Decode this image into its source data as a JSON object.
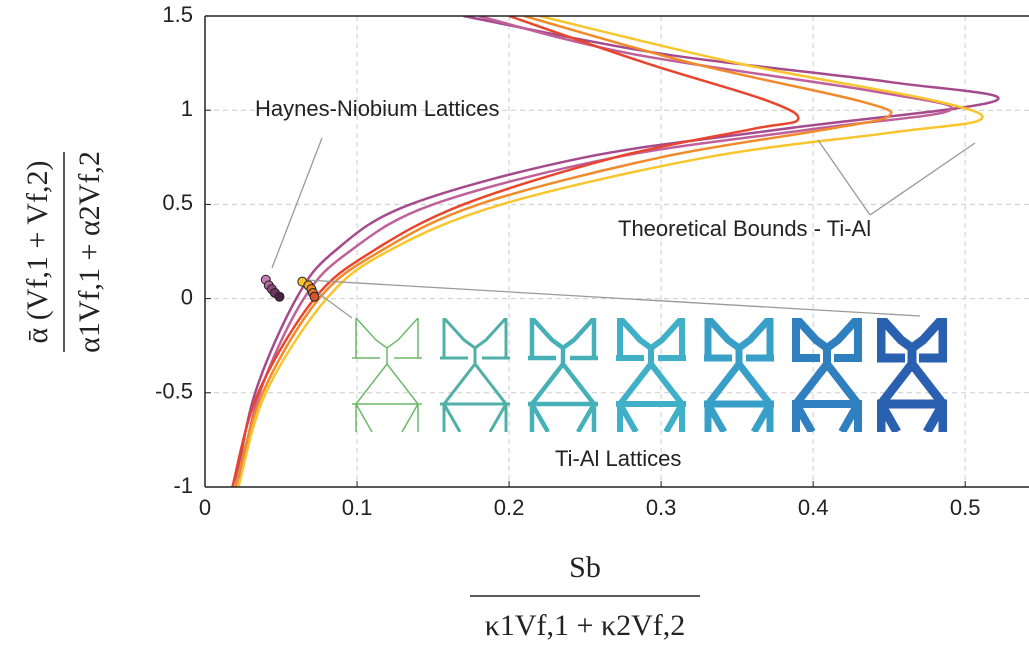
{
  "chart_data": {
    "type": "line",
    "y_label": {
      "numerator": "ᾱ (Vf,1 + Vf,2)",
      "denominator": "α1Vf,1 + α2Vf,2"
    },
    "x_label": {
      "numerator": "Sb",
      "denominator": "κ1Vf,1 + κ2Vf,2"
    },
    "xlim": [
      0,
      0.54
    ],
    "xticks": [
      0,
      0.1,
      0.2,
      0.3,
      0.4,
      0.5
    ],
    "ylim": [
      -1,
      1.5
    ],
    "yticks": [
      -1,
      -0.5,
      0,
      0.5,
      1,
      1.5
    ],
    "grid": true,
    "annotations": [
      "Theoretical Bounds - Ti-Al"
    ],
    "series": [
      {
        "type": "line",
        "color": "#a54a8c",
        "y": [
          -1,
          -0.5,
          0,
          0.25,
          0.5,
          0.75,
          0.9,
          1.05,
          1.15,
          1.3,
          1.5
        ],
        "x": [
          0.02,
          0.033,
          0.06,
          0.085,
          0.135,
          0.25,
          0.38,
          0.52,
          0.45,
          0.3,
          0.17
        ]
      },
      {
        "type": "line",
        "color": "#c0609a",
        "y": [
          -1,
          -0.5,
          0,
          0.25,
          0.5,
          0.75,
          0.9,
          1.0,
          1.1,
          1.3,
          1.5
        ],
        "x": [
          0.022,
          0.036,
          0.065,
          0.095,
          0.15,
          0.27,
          0.4,
          0.49,
          0.44,
          0.28,
          0.18
        ]
      },
      {
        "type": "line",
        "color": "#e8452c",
        "y": [
          -1,
          -0.5,
          0,
          0.25,
          0.5,
          0.75,
          0.9,
          0.95,
          1.05,
          1.25,
          1.5
        ],
        "x": [
          0.018,
          0.035,
          0.072,
          0.11,
          0.17,
          0.27,
          0.36,
          0.39,
          0.37,
          0.29,
          0.2
        ]
      },
      {
        "type": "line",
        "color": "#f08a2a",
        "y": [
          -1,
          -0.5,
          0,
          0.25,
          0.5,
          0.75,
          0.9,
          0.97,
          1.05,
          1.25,
          1.5
        ],
        "x": [
          0.02,
          0.038,
          0.075,
          0.115,
          0.18,
          0.3,
          0.41,
          0.45,
          0.43,
          0.32,
          0.21
        ]
      },
      {
        "type": "line",
        "color": "#f8c62c",
        "y": [
          -1,
          -0.5,
          0,
          0.25,
          0.5,
          0.75,
          0.88,
          0.95,
          1.05,
          1.25,
          1.5
        ],
        "x": [
          0.022,
          0.04,
          0.08,
          0.12,
          0.195,
          0.33,
          0.45,
          0.51,
          0.48,
          0.35,
          0.22
        ]
      },
      {
        "type": "scatter",
        "name": "Haynes-Niobium Lattices",
        "colors": [
          "#c77fb4",
          "#b0669e",
          "#8e4a80",
          "#6e3562",
          "#4a2244"
        ],
        "x": [
          0.04,
          0.042,
          0.044,
          0.046,
          0.049
        ],
        "y": [
          0.1,
          0.07,
          0.05,
          0.03,
          0.01
        ]
      },
      {
        "type": "scatter",
        "name": "Ti-Al Lattices",
        "colors": [
          "#f8c62c",
          "#f5a623",
          "#f08a2a",
          "#e8702a",
          "#d8552a"
        ],
        "x": [
          0.064,
          0.068,
          0.07,
          0.071,
          0.072
        ],
        "y": [
          0.09,
          0.07,
          0.05,
          0.03,
          0.01
        ]
      }
    ]
  }
}
